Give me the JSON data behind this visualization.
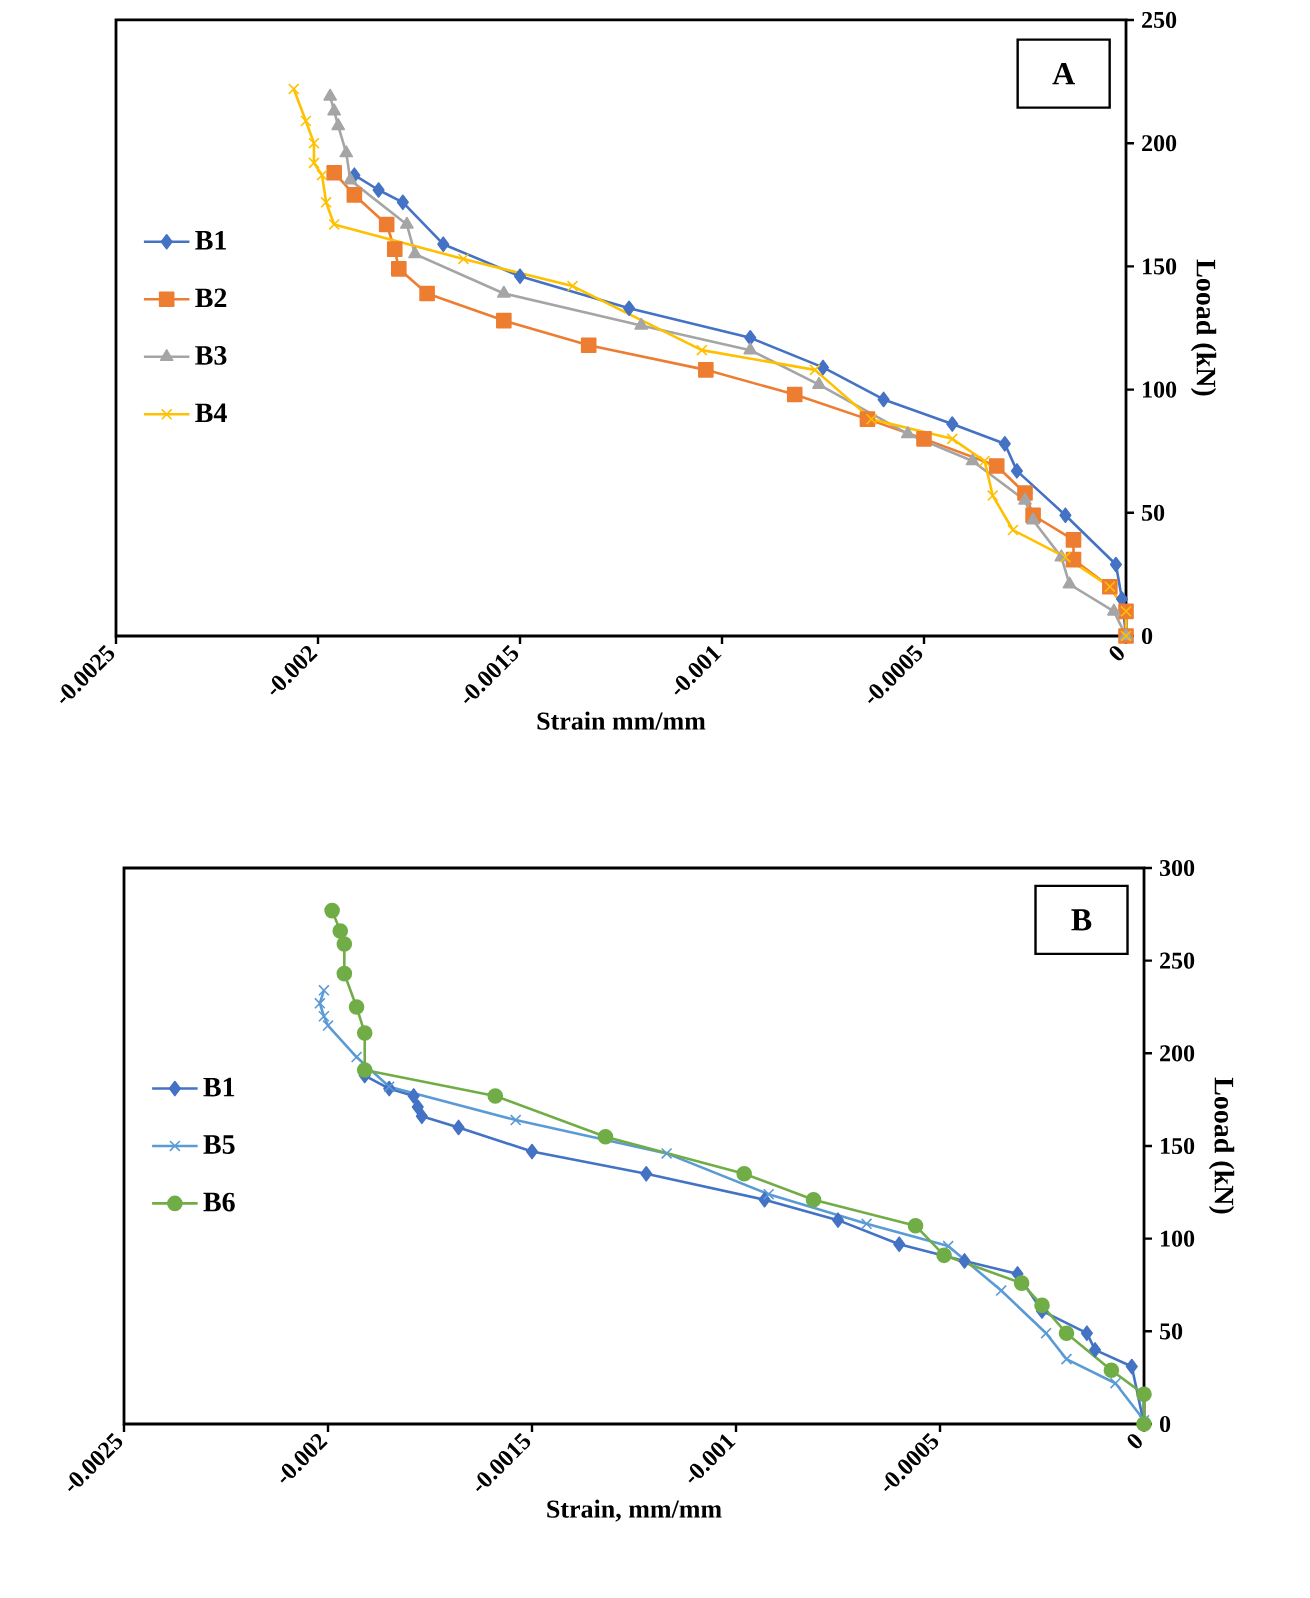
{
  "chart_data": [
    {
      "type": "line",
      "title": "A",
      "xlabel": "Strain mm/mm",
      "ylabel": "Looad (kN)",
      "xlim": [
        -0.0025,
        0
      ],
      "xticks": [
        -0.0025,
        -0.002,
        -0.0015,
        -0.001,
        -0.0005,
        0
      ],
      "ylim": [
        0,
        250
      ],
      "yticks": [
        0,
        50,
        100,
        150,
        200,
        250
      ],
      "legend": "left",
      "grid": false,
      "series": [
        {
          "name": "B1",
          "color": "#4472c4",
          "marker": "diamond",
          "x": [
            0,
            -1e-05,
            -2.5e-05,
            -0.00015,
            -0.00027,
            -0.0003,
            -0.00043,
            -0.0006,
            -0.00075,
            -0.00093,
            -0.00123,
            -0.0015,
            -0.00169,
            -0.00179,
            -0.00185,
            -0.00191
          ],
          "values": [
            0,
            15,
            29,
            49,
            67,
            78,
            86,
            96,
            109,
            121,
            133,
            146,
            159,
            176,
            181,
            187
          ]
        },
        {
          "name": "B2",
          "color": "#ed7d31",
          "marker": "square",
          "x": [
            0,
            0,
            -4e-05,
            -0.00013,
            -0.00013,
            -0.00023,
            -0.00025,
            -0.00032,
            -0.0005,
            -0.00064,
            -0.00082,
            -0.00104,
            -0.00133,
            -0.00154,
            -0.00173,
            -0.0018,
            -0.00181,
            -0.00183,
            -0.00191,
            -0.00196
          ],
          "values": [
            0,
            10,
            20,
            31,
            39,
            49,
            58,
            69,
            80,
            88,
            98,
            108,
            118,
            128,
            139,
            149,
            157,
            167,
            179,
            188
          ]
        },
        {
          "name": "B3",
          "color": "#a5a5a5",
          "marker": "triangle",
          "x": [
            0,
            -3e-05,
            -0.00014,
            -0.00016,
            -0.00023,
            -0.00025,
            -0.00038,
            -0.00054,
            -0.00076,
            -0.00093,
            -0.0012,
            -0.00154,
            -0.00176,
            -0.00178,
            -0.00192,
            -0.00193,
            -0.00195,
            -0.00196,
            -0.00197
          ],
          "values": [
            0,
            10,
            21,
            32,
            47,
            55,
            71,
            82,
            102,
            116,
            126,
            139,
            155,
            167,
            185,
            196,
            207,
            213,
            219
          ]
        },
        {
          "name": "B4",
          "color": "#ffc000",
          "marker": "cross",
          "x": [
            0,
            0,
            -4e-05,
            -0.00015,
            -0.00028,
            -0.00033,
            -0.00035,
            -0.00043,
            -0.00063,
            -0.00077,
            -0.00105,
            -0.00137,
            -0.00164,
            -0.00196,
            -0.00198,
            -0.00199,
            -0.00201,
            -0.00201,
            -0.00203,
            -0.00206
          ],
          "values": [
            0,
            10,
            20,
            32,
            43,
            57,
            71,
            80,
            88,
            108,
            116,
            142,
            153,
            167,
            176,
            187,
            192,
            200,
            209,
            222
          ]
        }
      ]
    },
    {
      "type": "line",
      "title": "B",
      "xlabel": "Strain, mm/mm",
      "ylabel": "Looad (kN)",
      "xlim": [
        -0.0025,
        0
      ],
      "xticks": [
        -0.0025,
        -0.002,
        -0.0015,
        -0.001,
        -0.0005,
        0
      ],
      "ylim": [
        0,
        300
      ],
      "yticks": [
        0,
        50,
        100,
        150,
        200,
        250,
        300
      ],
      "legend": "left",
      "grid": false,
      "series": [
        {
          "name": "B1",
          "color": "#4472c4",
          "marker": "diamond",
          "x": [
            0,
            -3e-05,
            -0.00012,
            -0.00014,
            -0.00025,
            -0.00031,
            -0.00044,
            -0.0006,
            -0.00075,
            -0.00093,
            -0.00122,
            -0.0015,
            -0.00168,
            -0.00177,
            -0.00178,
            -0.00179,
            -0.00185,
            -0.00191
          ],
          "values": [
            0,
            31,
            40,
            49,
            61,
            81,
            88,
            97,
            110,
            121,
            135,
            147,
            160,
            166,
            171,
            177,
            181,
            188
          ]
        },
        {
          "name": "B5",
          "color": "#5b9bd5",
          "marker": "cross",
          "x": [
            0,
            -7e-05,
            -0.00019,
            -0.00024,
            -0.00035,
            -0.00048,
            -0.00068,
            -0.00092,
            -0.00117,
            -0.00154,
            -0.00185,
            -0.00193,
            -0.002,
            -0.00201,
            -0.00202,
            -0.00201
          ],
          "values": [
            2,
            22,
            35,
            49,
            72,
            96,
            108,
            124,
            146,
            164,
            182,
            198,
            215,
            220,
            227,
            234
          ]
        },
        {
          "name": "B6",
          "color": "#70ad47",
          "marker": "circle",
          "x": [
            0,
            0,
            -8e-05,
            -0.00019,
            -0.00025,
            -0.0003,
            -0.00049,
            -0.00056,
            -0.00081,
            -0.00098,
            -0.00132,
            -0.00159,
            -0.00191,
            -0.00191,
            -0.00193,
            -0.00196,
            -0.00196,
            -0.00197,
            -0.00199
          ],
          "values": [
            0,
            16,
            29,
            49,
            64,
            76,
            91,
            107,
            121,
            135,
            155,
            177,
            191,
            211,
            225,
            243,
            259,
            266,
            277
          ]
        }
      ]
    }
  ]
}
